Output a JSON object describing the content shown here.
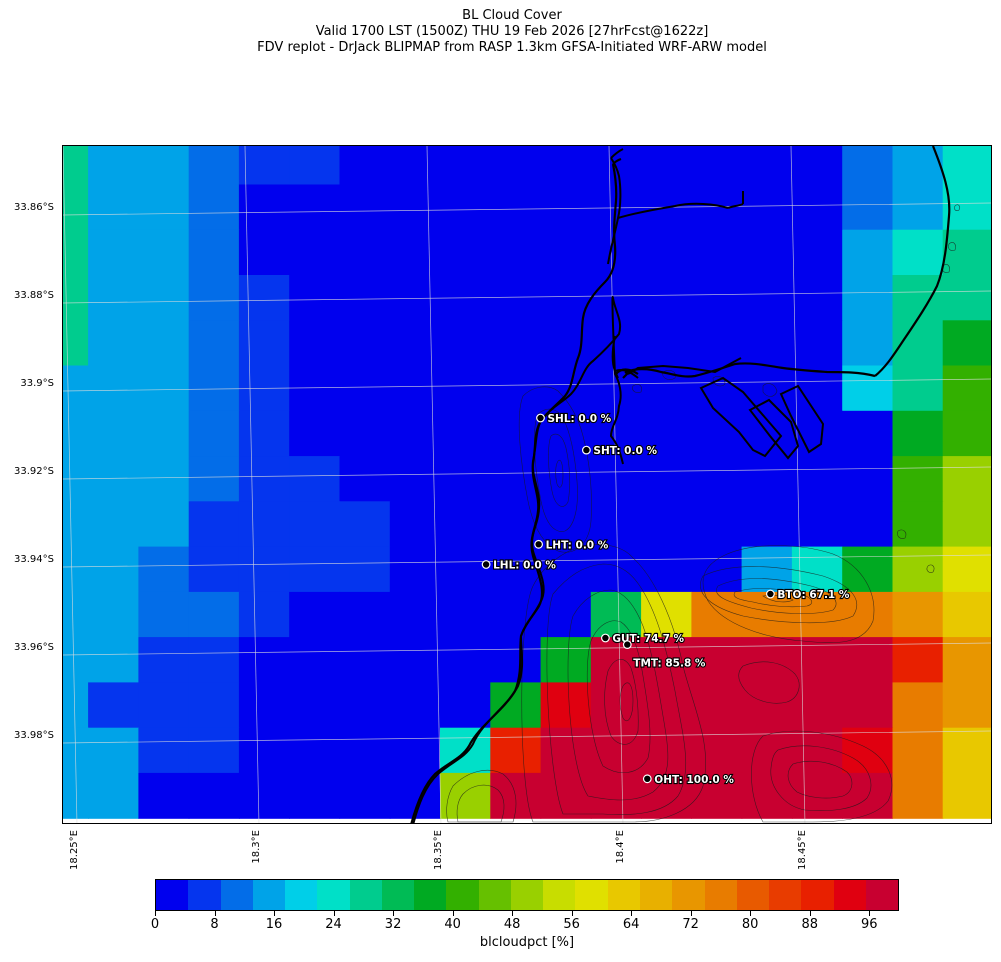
{
  "titles": {
    "line1": "BL Cloud Cover",
    "line2": "Valid 1700 LST (1500Z) THU 19 Feb 2026 [27hrFcst@1622z]",
    "line3": "FDV replot - DrJack BLIPMAP from RASP 1.3km GFSA-Initiated WRF-ARW model"
  },
  "lat_ticks": [
    {
      "label": "33.86°S",
      "lat": -33.86
    },
    {
      "label": "33.88°S",
      "lat": -33.88
    },
    {
      "label": "33.9°S",
      "lat": -33.9
    },
    {
      "label": "33.92°S",
      "lat": -33.92
    },
    {
      "label": "33.94°S",
      "lat": -33.94
    },
    {
      "label": "33.96°S",
      "lat": -33.96
    },
    {
      "label": "33.98°S",
      "lat": -33.98
    }
  ],
  "lon_ticks": [
    {
      "label": "18.25°E",
      "lon": 18.25
    },
    {
      "label": "18.3°E",
      "lon": 18.3
    },
    {
      "label": "18.35°E",
      "lon": 18.35
    },
    {
      "label": "18.4°E",
      "lon": 18.4
    },
    {
      "label": "18.45°E",
      "lon": 18.45
    }
  ],
  "stations": [
    {
      "id": "SHL",
      "label": "SHL: 0.0 %",
      "value": 0.0,
      "lon": 18.376,
      "lat": -33.9075
    },
    {
      "id": "SHT",
      "label": "SHT: 0.0 %",
      "value": 0.0,
      "lon": 18.3885,
      "lat": -33.9148
    },
    {
      "id": "LHT",
      "label": "LHT: 0.0 %",
      "value": 0.0,
      "lon": 18.375,
      "lat": -33.9362
    },
    {
      "id": "LHL",
      "label": "LHL: 0.0 %",
      "value": 0.0,
      "lon": 18.3605,
      "lat": -33.9408
    },
    {
      "id": "BTO",
      "label": "BTO: 67.1 %",
      "value": 67.1,
      "lon": 18.4385,
      "lat": -33.9475
    },
    {
      "id": "GUT",
      "label": "GUT: 74.7 %",
      "value": 74.7,
      "lon": 18.393,
      "lat": -33.9575
    },
    {
      "id": "TMT",
      "label": "TMT: 85.8 %",
      "value": 85.8,
      "lon": 18.399,
      "lat": -33.959,
      "label_below": true
    },
    {
      "id": "OHT",
      "label": "OHT: 100.0 %",
      "value": 100.0,
      "lon": 18.404,
      "lat": -33.9895
    }
  ],
  "colorbar": {
    "title": "blcloudpct [%]",
    "min": 0,
    "max": 100,
    "tick_values": [
      0,
      8,
      16,
      24,
      32,
      40,
      48,
      56,
      64,
      72,
      80,
      88,
      96
    ],
    "tick_labels": [
      "0",
      "8",
      "16",
      "24",
      "32",
      "40",
      "48",
      "56",
      "64",
      "72",
      "80",
      "88",
      "96"
    ],
    "colors": [
      "#0000ee",
      "#0535ee",
      "#036de8",
      "#00a3e8",
      "#00cfe8",
      "#00e0c8",
      "#00cc8e",
      "#00bb55",
      "#00aa22",
      "#33b000",
      "#66c000",
      "#99d000",
      "#c8dd00",
      "#e0e000",
      "#e8c800",
      "#e8b000",
      "#e89600",
      "#e87c00",
      "#e85a00",
      "#e83c00",
      "#e82000",
      "#e00010",
      "#c80030"
    ]
  },
  "grid": {
    "cell_values": [
      [
        28,
        17,
        17,
        12,
        8,
        8,
        4,
        4,
        4,
        4,
        4,
        4,
        4,
        4,
        4,
        0,
        12,
        17,
        25
      ],
      [
        28,
        17,
        17,
        12,
        4,
        0,
        0,
        0,
        0,
        0,
        0,
        0,
        0,
        0,
        0,
        0,
        12,
        17,
        25
      ],
      [
        28,
        17,
        16,
        12,
        4,
        0,
        0,
        0,
        0,
        0,
        0,
        0,
        0,
        0,
        0,
        0,
        16,
        25,
        28
      ],
      [
        28,
        17,
        16,
        12,
        8,
        4,
        0,
        0,
        0,
        0,
        0,
        0,
        0,
        0,
        0,
        0,
        16,
        28,
        28
      ],
      [
        28,
        17,
        16,
        12,
        8,
        4,
        0,
        0,
        0,
        0,
        0,
        0,
        0,
        0,
        0,
        0,
        17,
        28,
        36
      ],
      [
        17,
        17,
        16,
        12,
        8,
        4,
        0,
        0,
        0,
        0,
        0,
        0,
        0,
        0,
        0,
        0,
        20,
        28,
        40
      ],
      [
        17,
        16,
        16,
        12,
        8,
        4,
        0,
        0,
        0,
        0,
        0,
        0,
        0,
        0,
        0,
        0,
        0,
        36,
        40
      ],
      [
        17,
        16,
        16,
        12,
        8,
        8,
        4,
        0,
        0,
        0,
        0,
        0,
        0,
        0,
        0,
        0,
        0,
        43,
        52
      ],
      [
        17,
        16,
        16,
        8,
        8,
        8,
        8,
        0,
        0,
        0,
        0,
        0,
        0,
        0,
        0,
        0,
        0,
        43,
        52
      ],
      [
        17,
        16,
        12,
        8,
        8,
        8,
        8,
        4,
        0,
        0,
        0,
        0,
        0,
        0,
        16,
        24,
        36,
        48,
        58
      ],
      [
        17,
        16,
        12,
        12,
        8,
        0,
        0,
        0,
        0,
        0,
        0,
        34,
        58,
        76,
        76,
        76,
        76,
        70,
        64
      ],
      [
        17,
        16,
        8,
        8,
        0,
        0,
        0,
        0,
        0,
        0,
        38,
        96,
        96,
        96,
        96,
        96,
        96,
        88,
        72
      ],
      [
        17,
        8,
        8,
        8,
        0,
        0,
        0,
        0,
        0,
        36,
        92,
        96,
        96,
        96,
        96,
        96,
        96,
        76,
        72
      ],
      [
        17,
        16,
        8,
        8,
        0,
        0,
        0,
        0,
        26,
        90,
        96,
        96,
        96,
        96,
        96,
        96,
        92,
        76,
        64
      ],
      [
        17,
        16,
        4,
        4,
        0,
        0,
        0,
        4,
        52,
        96,
        96,
        96,
        96,
        96,
        96,
        96,
        96,
        76,
        64
      ]
    ]
  }
}
